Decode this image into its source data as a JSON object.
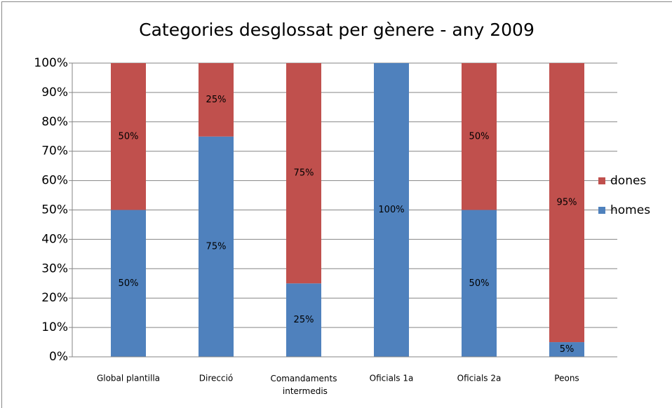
{
  "chart_data": {
    "type": "stacked_bar",
    "title": "Categories desglossat per gènere  - any 2009",
    "categories": [
      "Global plantilla",
      "Direcció",
      "Comandaments intermedis",
      "Oficials 1a",
      "Oficials 2a",
      "Peons"
    ],
    "series": [
      {
        "name": "homes",
        "color": "#4f81bd",
        "values": [
          50,
          75,
          25,
          100,
          50,
          5
        ],
        "value_labels": [
          "50%",
          "75%",
          "25%",
          "100%",
          "50%",
          "5%"
        ]
      },
      {
        "name": "dones",
        "color": "#c0504d",
        "values": [
          50,
          25,
          75,
          0,
          50,
          95
        ],
        "value_labels": [
          "50%",
          "25%",
          "75%",
          null,
          "50%",
          "95%"
        ]
      }
    ],
    "ylim": [
      0,
      100
    ],
    "yticks": [
      {
        "value": 0,
        "label": "0%"
      },
      {
        "value": 10,
        "label": "10%"
      },
      {
        "value": 20,
        "label": "20%"
      },
      {
        "value": 30,
        "label": "30%"
      },
      {
        "value": 40,
        "label": "40%"
      },
      {
        "value": 50,
        "label": "50%"
      },
      {
        "value": 60,
        "label": "60%"
      },
      {
        "value": 70,
        "label": "70%"
      },
      {
        "value": 80,
        "label": "80%"
      },
      {
        "value": 90,
        "label": "90%"
      },
      {
        "value": 100,
        "label": "100%"
      }
    ],
    "grid": true,
    "legend": "right"
  }
}
